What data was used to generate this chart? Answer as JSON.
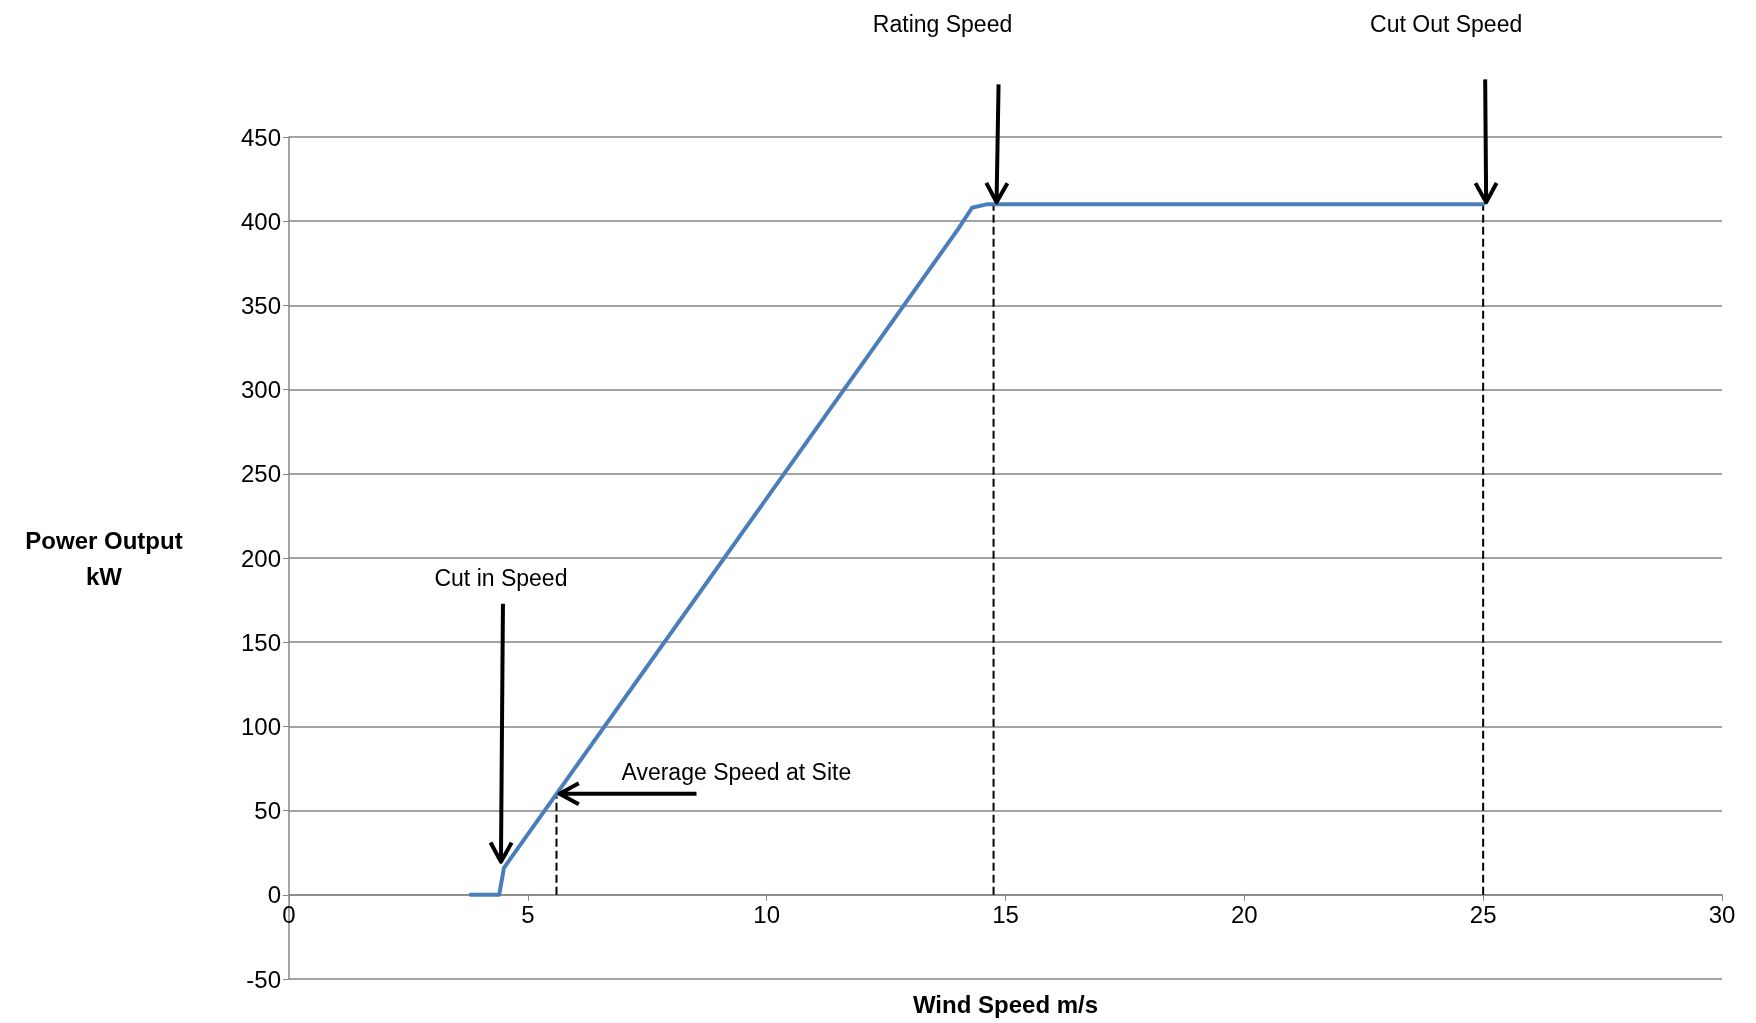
{
  "chart_data": {
    "type": "line",
    "xlabel": "Wind Speed m/s",
    "ylabel": "Power Output\nkW",
    "series": [
      {
        "color": "#4a7ebb",
        "x": [
          3.8,
          4.4,
          4.5,
          14.0,
          14.3,
          14.6,
          25
        ],
        "values": [
          0,
          0,
          16,
          395,
          408,
          410,
          410
        ]
      }
    ],
    "xlim": [
      0,
      30
    ],
    "xticks": [
      0,
      5,
      10,
      15,
      20,
      25,
      30
    ],
    "ylim": [
      -50,
      450
    ],
    "yticks": [
      -50,
      0,
      50,
      100,
      150,
      200,
      250,
      300,
      350,
      400,
      450
    ],
    "grid": "y",
    "marker": "none",
    "line_style": "solid",
    "ref_lines": [
      {
        "axis": "x",
        "value": 5.6,
        "line_style": "dashed",
        "color": "#000000"
      },
      {
        "axis": "x",
        "value": 14.75,
        "line_style": "dashed",
        "color": "#000000"
      },
      {
        "axis": "x",
        "value": 25,
        "line_style": "dashed",
        "color": "#000000"
      }
    ],
    "annotations": [
      {
        "text": "Cut in Speed",
        "x": 4.5,
        "y": 16
      },
      {
        "text": "Average Speed at Site",
        "x": 5.6,
        "y": 60
      },
      "Rating Speed",
      "Cut Out Speed"
    ]
  }
}
